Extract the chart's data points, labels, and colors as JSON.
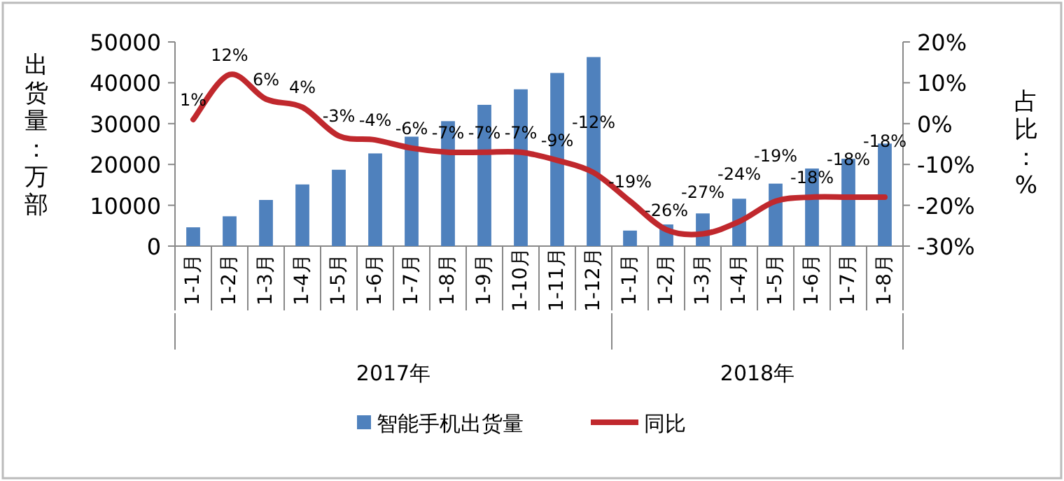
{
  "chart_data": {
    "type": "bar",
    "ylabel": "出货量：万部",
    "y2label": "占比：%",
    "categories": [
      "1-1月",
      "1-2月",
      "1-3月",
      "1-4月",
      "1-5月",
      "1-6月",
      "1-7月",
      "1-8月",
      "1-9月",
      "1-10月",
      "1-11月",
      "1-12月",
      "1-1月",
      "1-2月",
      "1-3月",
      "1-4月",
      "1-5月",
      "1-6月",
      "1-7月",
      "1-8月"
    ],
    "series": [
      {
        "name": "智能手机出货量",
        "color": "#4f81bd",
        "values": [
          4600,
          7300,
          11300,
          15100,
          18700,
          22700,
          26800,
          30600,
          34600,
          38400,
          42400,
          46300,
          3800,
          5300,
          8000,
          11600,
          15300,
          19000,
          21400,
          25100
        ]
      },
      {
        "name": "同比",
        "type": "line",
        "axis": "y2",
        "color": "#c0282d",
        "data_labels": true,
        "value_labels": [
          "1%",
          "12%",
          "6%",
          "4%",
          "-3%",
          "-4%",
          "-6%",
          "-7%",
          "-7%",
          "-7%",
          "-9%",
          "-12%",
          "-19%",
          "-26%",
          "-27%",
          "-24%",
          "-19%",
          "-18%",
          "-18%",
          "-18%"
        ],
        "values": [
          1,
          12,
          6,
          4,
          -3,
          -4,
          -6,
          -7,
          -7,
          -7,
          -9,
          -12,
          -19,
          -26,
          -27,
          -24,
          -19,
          -18,
          -18,
          -18
        ]
      }
    ],
    "ylim": [
      0,
      50000
    ],
    "yticks": [
      0,
      10000,
      20000,
      30000,
      40000,
      50000
    ],
    "y2lim": [
      -30,
      20
    ],
    "y2ticks": [
      {
        "value": -30,
        "label": "-30%"
      },
      {
        "value": -20,
        "label": "-20%"
      },
      {
        "value": -10,
        "label": "-10%"
      },
      {
        "value": 0,
        "label": "0%"
      },
      {
        "value": 10,
        "label": "10%"
      },
      {
        "value": 20,
        "label": "20%"
      }
    ],
    "annotations": [
      "2017年",
      "2018年"
    ],
    "grid": false,
    "legend": "bottom"
  }
}
